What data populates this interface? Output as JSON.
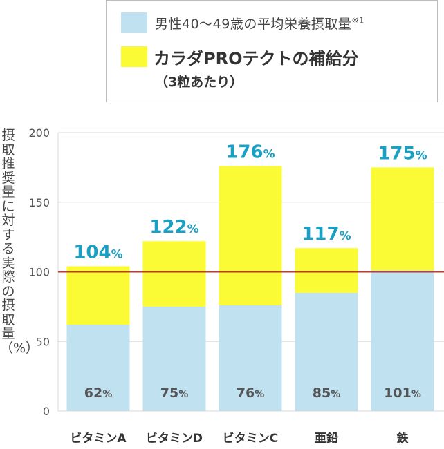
{
  "legend": {
    "intake_label": "男性40〜49歳の平均栄養摂取量",
    "intake_note": "※1",
    "supplement_label": "カラダPROテクトの補給分",
    "supplement_sub": "（3粒あたり）"
  },
  "y_axis_label": "摂取推奨量に対する実際の摂取量（%）",
  "colors": {
    "intake": "#c0e1f0",
    "supplement": "#fafa35",
    "total_label": "#1aa0c4",
    "reference_line": "#c0392b",
    "grid": "#d9d9d9",
    "text": "#444444"
  },
  "chart_data": {
    "type": "bar",
    "stacked": true,
    "categories": [
      "ビタミンA",
      "ビタミンD",
      "ビタミンC",
      "亜鉛",
      "鉄"
    ],
    "series": [
      {
        "name": "男性40〜49歳の平均栄養摂取量",
        "values": [
          62,
          75,
          76,
          85,
          101
        ]
      },
      {
        "name": "カラダPROテクトの補給分",
        "values": [
          42,
          47,
          100,
          32,
          74
        ]
      }
    ],
    "intake_labels": [
      "62%",
      "75%",
      "76%",
      "85%",
      "101%"
    ],
    "total_labels": [
      "104%",
      "122%",
      "176%",
      "117%",
      "175%"
    ],
    "totals": [
      104,
      122,
      176,
      117,
      175
    ],
    "y_ticks": [
      0,
      50,
      100,
      150,
      200
    ],
    "ylim": [
      0,
      200
    ],
    "reference_line": 100,
    "ylabel": "摂取推奨量に対する実際の摂取量（%）",
    "grid": true,
    "legend_position": "top-right"
  }
}
